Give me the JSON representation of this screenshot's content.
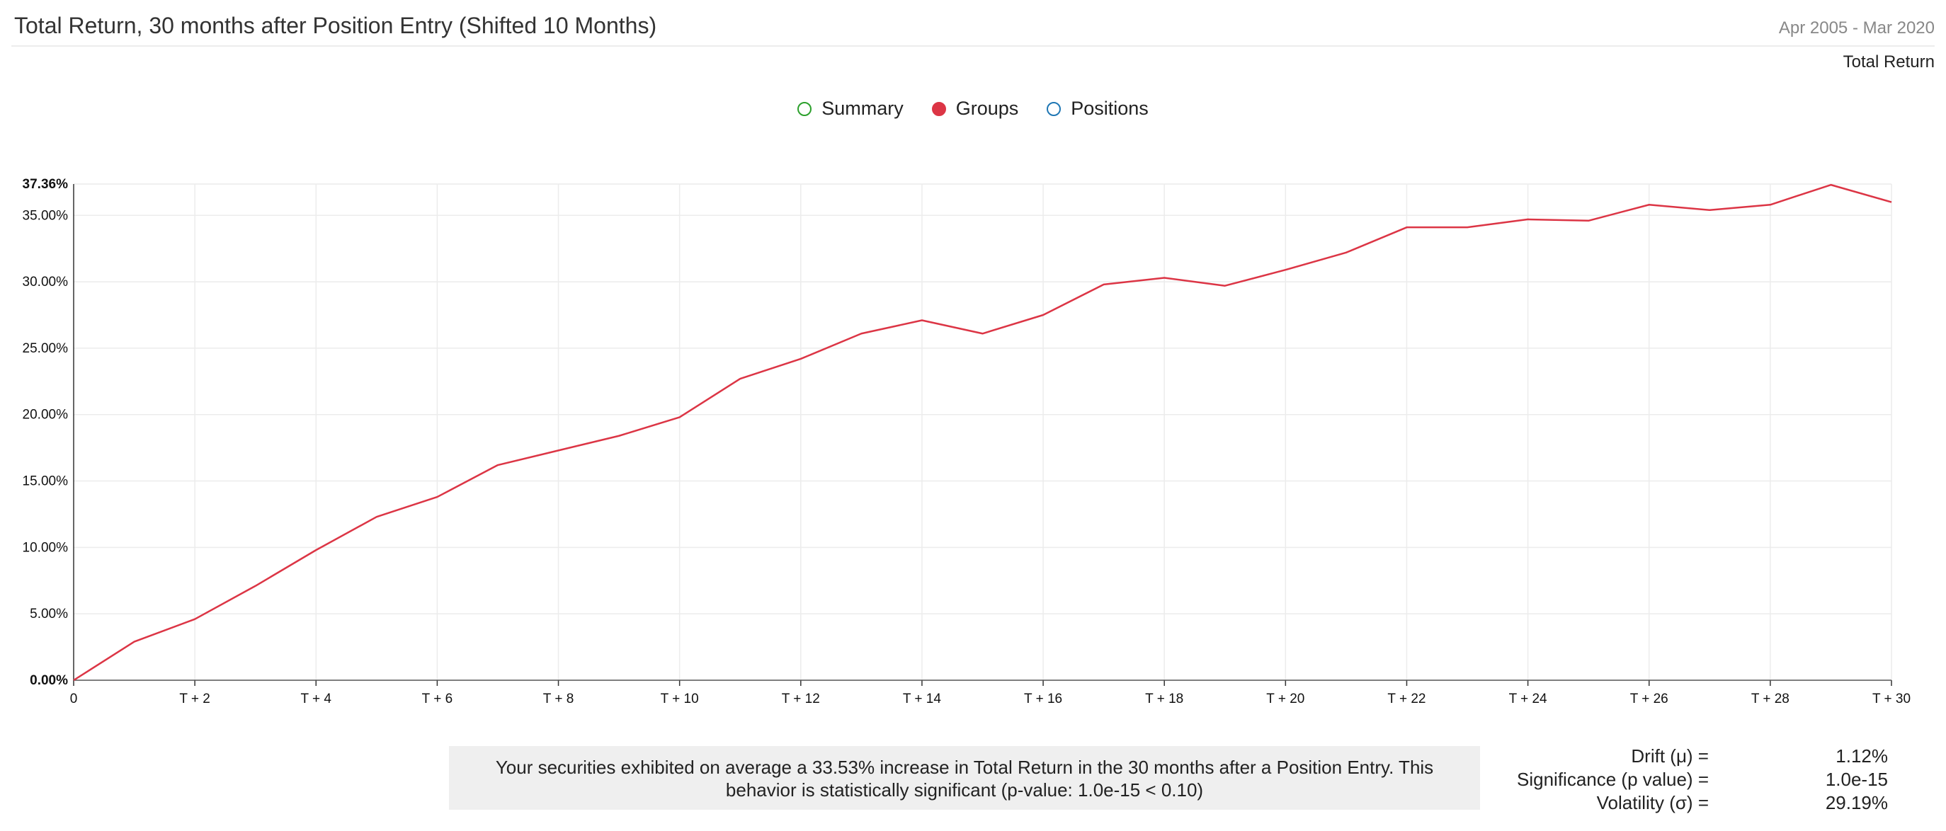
{
  "header": {
    "title": "Total Return, 30 months after Position Entry (Shifted 10 Months)",
    "date_range": "Apr 2005 - Mar 2020",
    "metric_label": "Total Return"
  },
  "legend": {
    "items": [
      {
        "label": "Summary",
        "color": "#2ca02c",
        "filled": false
      },
      {
        "label": "Groups",
        "color": "#dc3545",
        "filled": true
      },
      {
        "label": "Positions",
        "color": "#1f77b4",
        "filled": false
      }
    ]
  },
  "summary_text": "Your securities exhibited on average a 33.53% increase in Total Return in the 30 months after a Position Entry. This behavior is statistically significant (p-value: 1.0e-15 < 0.10)",
  "stats": [
    {
      "label": "Drift (μ) =",
      "value": "1.12%"
    },
    {
      "label": "Significance (p value) =",
      "value": "1.0e-15"
    },
    {
      "label": "Volatility (σ) =",
      "value": "29.19%"
    }
  ],
  "chart_data": {
    "type": "line",
    "x": [
      0,
      1,
      2,
      3,
      4,
      5,
      6,
      7,
      8,
      9,
      10,
      11,
      12,
      13,
      14,
      15,
      16,
      17,
      18,
      19,
      20,
      21,
      22,
      23,
      24,
      25,
      26,
      27,
      28,
      29,
      30
    ],
    "x_tick_labels": [
      "0",
      "T + 2",
      "T + 4",
      "T + 6",
      "T + 8",
      "T + 10",
      "T + 12",
      "T + 14",
      "T + 16",
      "T + 18",
      "T + 20",
      "T + 22",
      "T + 24",
      "T + 26",
      "T + 28",
      "T + 30"
    ],
    "y_tick_labels": [
      "0.00%",
      "5.00%",
      "10.00%",
      "15.00%",
      "20.00%",
      "25.00%",
      "30.00%",
      "35.00%",
      "37.36%"
    ],
    "ylim": [
      0,
      37.36
    ],
    "xlim": [
      0,
      30
    ],
    "grid": true,
    "series": [
      {
        "name": "Groups",
        "color": "#dc3545",
        "values": [
          0,
          2.9,
          4.6,
          7.1,
          9.8,
          12.3,
          13.8,
          16.2,
          17.3,
          18.4,
          19.8,
          22.7,
          24.2,
          26.1,
          27.1,
          26.1,
          27.5,
          29.8,
          30.3,
          29.7,
          30.9,
          32.2,
          34.1,
          34.1,
          34.7,
          34.6,
          35.8,
          35.4,
          35.8,
          37.3,
          36.0
        ]
      }
    ]
  }
}
